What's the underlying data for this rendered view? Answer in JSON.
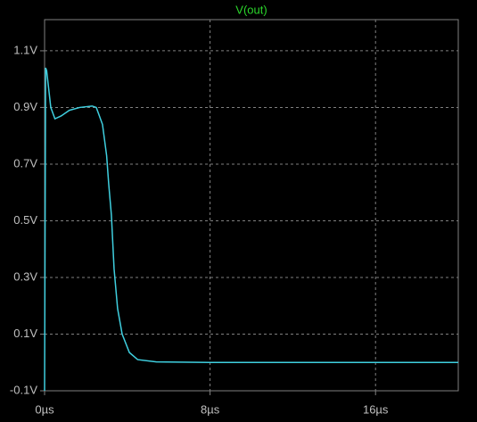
{
  "chart_data": {
    "type": "line",
    "title": "V(out)",
    "title_color": "#2bd62b",
    "x": [
      0,
      0.05,
      0.1,
      0.3,
      0.5,
      0.8,
      1.2,
      1.7,
      2.3,
      2.5,
      2.8,
      3.0,
      3.1,
      3.23,
      3.36,
      3.53,
      3.75,
      4.1,
      4.5,
      5.4,
      8,
      20
    ],
    "values": [
      -0.1,
      1.04,
      1.03,
      0.9,
      0.86,
      0.87,
      0.89,
      0.9,
      0.905,
      0.9,
      0.84,
      0.73,
      0.63,
      0.52,
      0.33,
      0.19,
      0.1,
      0.035,
      0.01,
      0.002,
      0,
      0
    ],
    "color": "#3fcfdf",
    "xlim": [
      0,
      20
    ],
    "ylim": [
      -0.1,
      1.21
    ],
    "xticks": [
      {
        "value": 0,
        "label": "0µs"
      },
      {
        "value": 8,
        "label": "8µs"
      },
      {
        "value": 16,
        "label": "16µs"
      }
    ],
    "yticks": [
      {
        "value": -0.1,
        "label": "-0.1V"
      },
      {
        "value": 0.1,
        "label": "0.1V"
      },
      {
        "value": 0.3,
        "label": "0.3V"
      },
      {
        "value": 0.5,
        "label": "0.5V"
      },
      {
        "value": 0.7,
        "label": "0.7V"
      },
      {
        "value": 0.9,
        "label": "0.9V"
      },
      {
        "value": 1.1,
        "label": "1.1V"
      }
    ],
    "grid": true
  }
}
